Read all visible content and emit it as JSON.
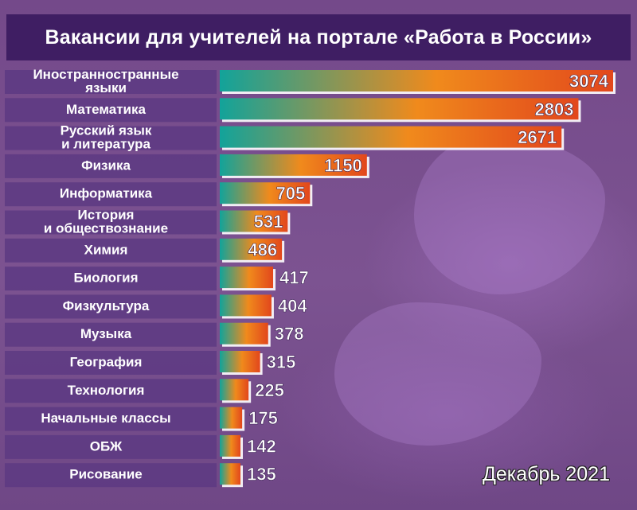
{
  "header": {
    "title": "Вакансии для учителей на портале «Работа в России»"
  },
  "footer": {
    "date_label": "Декабрь 2021"
  },
  "chart_data": {
    "type": "bar",
    "orientation": "horizontal",
    "title": "Вакансии для учителей на портале «Работа в России»",
    "categories": [
      [
        "Иностранностранные",
        "языки"
      ],
      [
        "Математика"
      ],
      [
        "Русский язык",
        "и литература"
      ],
      [
        "Физика"
      ],
      [
        "Информатика"
      ],
      [
        "История",
        "и обществознание"
      ],
      [
        "Химия"
      ],
      [
        "Биология"
      ],
      [
        "Физкультура"
      ],
      [
        "Музыка"
      ],
      [
        "География"
      ],
      [
        "Технология"
      ],
      [
        "Начальные классы"
      ],
      [
        "ОБЖ"
      ],
      [
        "Рисование"
      ]
    ],
    "values": [
      3074,
      2803,
      2671,
      1150,
      705,
      531,
      486,
      417,
      404,
      378,
      315,
      225,
      175,
      142,
      135
    ],
    "value_labels": [
      "3074",
      "2803",
      "2671",
      "1150",
      "705",
      "531",
      "486",
      "417",
      "404",
      "378",
      "315",
      "225",
      "175",
      "142",
      "135"
    ],
    "colors": {
      "bar_start": "#12a39a",
      "bar_mid": "#f08a1c",
      "bar_end": "#e2471c",
      "label_panel": "#5d3a82",
      "accent": "#ffffff"
    }
  }
}
